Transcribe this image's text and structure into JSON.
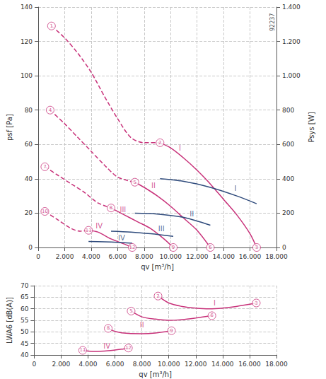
{
  "chart_data": [
    {
      "type": "line",
      "subtitle": "92237",
      "xlabel": "qv [m³/h]",
      "ylabel": "psf [Pa]",
      "y2label": "Psys [W]",
      "xlim": [
        0,
        18000
      ],
      "xticks": [
        0,
        {
          "value": 2000,
          "label": "2.000"
        },
        {
          "value": 4000,
          "label": "4.000"
        },
        {
          "value": 6000,
          "label": "6.000"
        },
        {
          "value": 8000,
          "label": "8.000"
        },
        {
          "value": 10000,
          "label": "10.000"
        },
        {
          "value": 12000,
          "label": "12.000"
        },
        {
          "value": 14000,
          "label": "14.000"
        },
        {
          "value": 16000,
          "label": "16.000"
        },
        {
          "value": 18000,
          "label": "18.000"
        }
      ],
      "ylim": [
        0,
        140
      ],
      "yticks": [
        0,
        20,
        40,
        60,
        80,
        100,
        120,
        140
      ],
      "y2lim": [
        0,
        1400
      ],
      "y2ticks": [
        0,
        200,
        400,
        600,
        800,
        {
          "value": 1000,
          "label": "1.000"
        },
        {
          "value": 1200,
          "label": "1.200"
        },
        {
          "value": 1400,
          "label": "1.400"
        }
      ],
      "grid": true,
      "series": [
        {
          "color": "#c8327a",
          "line_style": "dashed",
          "x": [
            1000,
            2000,
            3000,
            4000,
            5000,
            6000,
            7000,
            8000,
            9200
          ],
          "values": [
            129,
            122,
            113,
            102,
            88,
            75,
            64,
            61,
            61
          ]
        },
        {
          "color": "#c8327a",
          "line_style": "solid",
          "x": [
            9200,
            10000,
            11000,
            12000,
            13000,
            14000,
            15000,
            16000,
            16500
          ],
          "values": [
            61,
            58,
            52,
            45,
            37,
            28,
            19,
            8,
            0
          ]
        },
        {
          "color": "#c8327a",
          "line_style": "dashed",
          "x": [
            900,
            2000,
            3000,
            4000,
            5000,
            6000,
            7300
          ],
          "values": [
            80,
            72,
            64,
            56,
            48,
            41,
            38
          ]
        },
        {
          "color": "#c8327a",
          "line_style": "solid",
          "x": [
            7300,
            8000,
            9000,
            10000,
            11000,
            12000,
            13000
          ],
          "values": [
            38,
            35,
            30,
            24,
            17,
            10,
            0
          ]
        },
        {
          "color": "#c8327a",
          "line_style": "dashed",
          "x": [
            500,
            1500,
            2500,
            3500,
            4500,
            5500
          ],
          "values": [
            47,
            42,
            37,
            32,
            26,
            23
          ]
        },
        {
          "color": "#c8327a",
          "line_style": "solid",
          "x": [
            5500,
            6500,
            7500,
            8500,
            9500,
            10200
          ],
          "values": [
            23,
            19,
            15,
            11,
            5,
            0
          ]
        },
        {
          "color": "#c8327a",
          "line_style": "dashed",
          "x": [
            500,
            1500,
            2500,
            3200,
            3800
          ],
          "values": [
            21,
            16,
            11,
            9.5,
            10
          ]
        },
        {
          "color": "#c8327a",
          "line_style": "solid",
          "x": [
            3800,
            4500,
            5500,
            6500,
            7100
          ],
          "values": [
            10,
            9,
            5,
            2,
            0
          ]
        },
        {
          "color": "#2f4b7c",
          "line_style": "solid",
          "axis": "y2",
          "x": [
            9200,
            11000,
            13000,
            15000,
            16500
          ],
          "values": [
            400,
            385,
            350,
            300,
            255
          ]
        },
        {
          "color": "#2f4b7c",
          "line_style": "solid",
          "axis": "y2",
          "x": [
            7300,
            9000,
            11000,
            13000
          ],
          "values": [
            200,
            195,
            175,
            130
          ]
        },
        {
          "color": "#2f4b7c",
          "line_style": "solid",
          "axis": "y2",
          "x": [
            5500,
            7000,
            8500,
            10200
          ],
          "values": [
            95,
            90,
            80,
            65
          ]
        },
        {
          "color": "#2f4b7c",
          "line_style": "solid",
          "axis": "y2",
          "x": [
            3800,
            5000,
            6000,
            7100
          ],
          "values": [
            35,
            33,
            30,
            25
          ]
        }
      ],
      "annotations": [
        {
          "text": "I",
          "x": 10700,
          "y": 58,
          "color": "#c8327a"
        },
        {
          "text": "II",
          "x": 8700,
          "y": 36,
          "color": "#c8327a"
        },
        {
          "text": "III",
          "x": 6400,
          "y": 22,
          "color": "#c8327a"
        },
        {
          "text": "IV",
          "x": 4600,
          "y": 12.5,
          "color": "#c8327a"
        },
        {
          "text": "I",
          "x": 14900,
          "y": 345,
          "color": "#2f4b7c",
          "axis": "y2"
        },
        {
          "text": "II",
          "x": 11600,
          "y": 195,
          "color": "#2f4b7c",
          "axis": "y2"
        },
        {
          "text": "III",
          "x": 9300,
          "y": 110,
          "color": "#2f4b7c",
          "axis": "y2"
        },
        {
          "text": "IV",
          "x": 6300,
          "y": 55,
          "color": "#2f4b7c",
          "axis": "y2"
        }
      ],
      "markers": {
        "color": "#c8327a",
        "points": [
          {
            "text": "1",
            "x": 1000,
            "y": 129
          },
          {
            "text": "2",
            "x": 9200,
            "y": 61
          },
          {
            "text": "3",
            "x": 16500,
            "y": 0
          },
          {
            "text": "4",
            "x": 900,
            "y": 80
          },
          {
            "text": "5",
            "x": 7300,
            "y": 38
          },
          {
            "text": "6",
            "x": 13000,
            "y": 0
          },
          {
            "text": "7",
            "x": 500,
            "y": 47
          },
          {
            "text": "8",
            "x": 5500,
            "y": 23
          },
          {
            "text": "9",
            "x": 10200,
            "y": 0
          },
          {
            "text": "10",
            "x": 500,
            "y": 21
          },
          {
            "text": "11",
            "x": 3800,
            "y": 10
          },
          {
            "text": "12",
            "x": 7100,
            "y": 0
          }
        ]
      }
    },
    {
      "type": "line",
      "xlabel": "qv [m³/h]",
      "ylabel": "LWA6 [dB(A)]",
      "xlim": [
        0,
        18000
      ],
      "xticks": [
        0,
        {
          "value": 2000,
          "label": "2.000"
        },
        {
          "value": 4000,
          "label": "4.000"
        },
        {
          "value": 6000,
          "label": "6.000"
        },
        {
          "value": 8000,
          "label": "8.000"
        },
        {
          "value": 10000,
          "label": "10.000"
        },
        {
          "value": 12000,
          "label": "12.000"
        },
        {
          "value": 14000,
          "label": "14.000"
        },
        {
          "value": 16000,
          "label": "16.000"
        },
        {
          "value": 18000,
          "label": "18.000"
        }
      ],
      "ylim": [
        40,
        70
      ],
      "yticks": [
        40,
        45,
        50,
        55,
        60,
        65,
        70
      ],
      "grid": true,
      "series": [
        {
          "color": "#c8327a",
          "line_style": "solid",
          "x": [
            9200,
            10000,
            11000,
            12000,
            13000,
            14000,
            15000,
            16500
          ],
          "values": [
            65.5,
            62.5,
            61,
            60.3,
            60,
            60.3,
            61,
            62.5
          ]
        },
        {
          "color": "#c8327a",
          "line_style": "solid",
          "x": [
            7200,
            8000,
            9000,
            10000,
            11000,
            12000,
            13200
          ],
          "values": [
            59,
            56.5,
            55.5,
            55,
            55.3,
            56,
            57
          ]
        },
        {
          "color": "#c8327a",
          "line_style": "solid",
          "x": [
            5500,
            6000,
            7000,
            8000,
            9000,
            10200
          ],
          "values": [
            51.5,
            50.2,
            49.3,
            49.2,
            49.5,
            50.5
          ]
        },
        {
          "color": "#c8327a",
          "line_style": "solid",
          "x": [
            3600,
            4500,
            5500,
            6500,
            7000
          ],
          "values": [
            42,
            41.5,
            41.8,
            42.5,
            43
          ]
        }
      ],
      "annotations": [
        {
          "text": "I",
          "x": 13400,
          "y": 62.5,
          "color": "#c8327a"
        },
        {
          "text": "II",
          "x": 8000,
          "y": 53,
          "color": "#c8327a"
        },
        {
          "text": "IV",
          "x": 5400,
          "y": 43.8,
          "color": "#c8327a"
        }
      ],
      "markers": {
        "color": "#c8327a",
        "points": [
          {
            "text": "2",
            "x": 9200,
            "y": 65.5
          },
          {
            "text": "3",
            "x": 16500,
            "y": 62.5
          },
          {
            "text": "5",
            "x": 7200,
            "y": 59
          },
          {
            "text": "6",
            "x": 13200,
            "y": 57
          },
          {
            "text": "8",
            "x": 5500,
            "y": 51.5
          },
          {
            "text": "9",
            "x": 10200,
            "y": 50.5
          },
          {
            "text": "11",
            "x": 3600,
            "y": 42
          },
          {
            "text": "12",
            "x": 7000,
            "y": 43
          }
        ]
      }
    }
  ]
}
